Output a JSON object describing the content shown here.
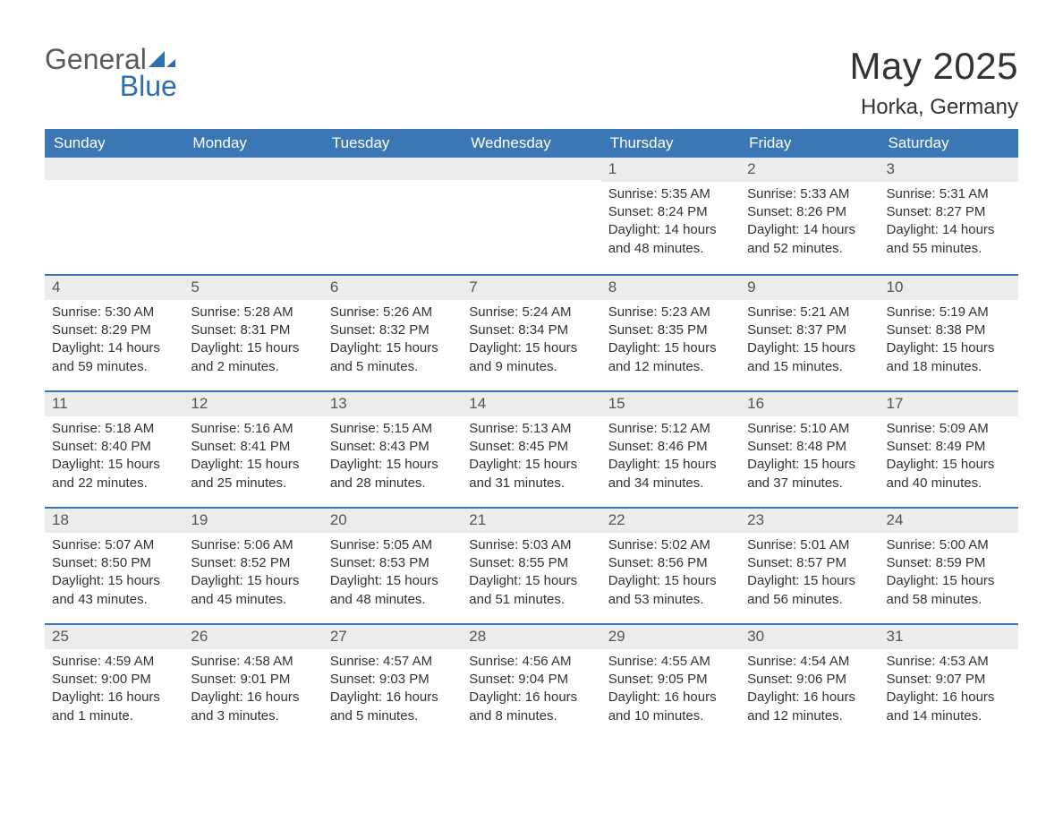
{
  "brand": {
    "general": "General",
    "blue": "Blue",
    "logo_fill": "#2f6faf"
  },
  "title": "May 2025",
  "location": "Horka, Germany",
  "colors": {
    "header_bg": "#3b77b5",
    "header_text": "#ffffff",
    "daynum_bg": "#ececec",
    "body_text": "#333333",
    "rule": "#3b77b5",
    "page_bg": "#ffffff"
  },
  "day_labels": [
    "Sunday",
    "Monday",
    "Tuesday",
    "Wednesday",
    "Thursday",
    "Friday",
    "Saturday"
  ],
  "weeks": [
    [
      {
        "empty": true
      },
      {
        "empty": true
      },
      {
        "empty": true
      },
      {
        "empty": true
      },
      {
        "day": "1",
        "sunrise": "Sunrise: 5:35 AM",
        "sunset": "Sunset: 8:24 PM",
        "daylight": "Daylight: 14 hours and 48 minutes."
      },
      {
        "day": "2",
        "sunrise": "Sunrise: 5:33 AM",
        "sunset": "Sunset: 8:26 PM",
        "daylight": "Daylight: 14 hours and 52 minutes."
      },
      {
        "day": "3",
        "sunrise": "Sunrise: 5:31 AM",
        "sunset": "Sunset: 8:27 PM",
        "daylight": "Daylight: 14 hours and 55 minutes."
      }
    ],
    [
      {
        "day": "4",
        "sunrise": "Sunrise: 5:30 AM",
        "sunset": "Sunset: 8:29 PM",
        "daylight": "Daylight: 14 hours and 59 minutes."
      },
      {
        "day": "5",
        "sunrise": "Sunrise: 5:28 AM",
        "sunset": "Sunset: 8:31 PM",
        "daylight": "Daylight: 15 hours and 2 minutes."
      },
      {
        "day": "6",
        "sunrise": "Sunrise: 5:26 AM",
        "sunset": "Sunset: 8:32 PM",
        "daylight": "Daylight: 15 hours and 5 minutes."
      },
      {
        "day": "7",
        "sunrise": "Sunrise: 5:24 AM",
        "sunset": "Sunset: 8:34 PM",
        "daylight": "Daylight: 15 hours and 9 minutes."
      },
      {
        "day": "8",
        "sunrise": "Sunrise: 5:23 AM",
        "sunset": "Sunset: 8:35 PM",
        "daylight": "Daylight: 15 hours and 12 minutes."
      },
      {
        "day": "9",
        "sunrise": "Sunrise: 5:21 AM",
        "sunset": "Sunset: 8:37 PM",
        "daylight": "Daylight: 15 hours and 15 minutes."
      },
      {
        "day": "10",
        "sunrise": "Sunrise: 5:19 AM",
        "sunset": "Sunset: 8:38 PM",
        "daylight": "Daylight: 15 hours and 18 minutes."
      }
    ],
    [
      {
        "day": "11",
        "sunrise": "Sunrise: 5:18 AM",
        "sunset": "Sunset: 8:40 PM",
        "daylight": "Daylight: 15 hours and 22 minutes."
      },
      {
        "day": "12",
        "sunrise": "Sunrise: 5:16 AM",
        "sunset": "Sunset: 8:41 PM",
        "daylight": "Daylight: 15 hours and 25 minutes."
      },
      {
        "day": "13",
        "sunrise": "Sunrise: 5:15 AM",
        "sunset": "Sunset: 8:43 PM",
        "daylight": "Daylight: 15 hours and 28 minutes."
      },
      {
        "day": "14",
        "sunrise": "Sunrise: 5:13 AM",
        "sunset": "Sunset: 8:45 PM",
        "daylight": "Daylight: 15 hours and 31 minutes."
      },
      {
        "day": "15",
        "sunrise": "Sunrise: 5:12 AM",
        "sunset": "Sunset: 8:46 PM",
        "daylight": "Daylight: 15 hours and 34 minutes."
      },
      {
        "day": "16",
        "sunrise": "Sunrise: 5:10 AM",
        "sunset": "Sunset: 8:48 PM",
        "daylight": "Daylight: 15 hours and 37 minutes."
      },
      {
        "day": "17",
        "sunrise": "Sunrise: 5:09 AM",
        "sunset": "Sunset: 8:49 PM",
        "daylight": "Daylight: 15 hours and 40 minutes."
      }
    ],
    [
      {
        "day": "18",
        "sunrise": "Sunrise: 5:07 AM",
        "sunset": "Sunset: 8:50 PM",
        "daylight": "Daylight: 15 hours and 43 minutes."
      },
      {
        "day": "19",
        "sunrise": "Sunrise: 5:06 AM",
        "sunset": "Sunset: 8:52 PM",
        "daylight": "Daylight: 15 hours and 45 minutes."
      },
      {
        "day": "20",
        "sunrise": "Sunrise: 5:05 AM",
        "sunset": "Sunset: 8:53 PM",
        "daylight": "Daylight: 15 hours and 48 minutes."
      },
      {
        "day": "21",
        "sunrise": "Sunrise: 5:03 AM",
        "sunset": "Sunset: 8:55 PM",
        "daylight": "Daylight: 15 hours and 51 minutes."
      },
      {
        "day": "22",
        "sunrise": "Sunrise: 5:02 AM",
        "sunset": "Sunset: 8:56 PM",
        "daylight": "Daylight: 15 hours and 53 minutes."
      },
      {
        "day": "23",
        "sunrise": "Sunrise: 5:01 AM",
        "sunset": "Sunset: 8:57 PM",
        "daylight": "Daylight: 15 hours and 56 minutes."
      },
      {
        "day": "24",
        "sunrise": "Sunrise: 5:00 AM",
        "sunset": "Sunset: 8:59 PM",
        "daylight": "Daylight: 15 hours and 58 minutes."
      }
    ],
    [
      {
        "day": "25",
        "sunrise": "Sunrise: 4:59 AM",
        "sunset": "Sunset: 9:00 PM",
        "daylight": "Daylight: 16 hours and 1 minute."
      },
      {
        "day": "26",
        "sunrise": "Sunrise: 4:58 AM",
        "sunset": "Sunset: 9:01 PM",
        "daylight": "Daylight: 16 hours and 3 minutes."
      },
      {
        "day": "27",
        "sunrise": "Sunrise: 4:57 AM",
        "sunset": "Sunset: 9:03 PM",
        "daylight": "Daylight: 16 hours and 5 minutes."
      },
      {
        "day": "28",
        "sunrise": "Sunrise: 4:56 AM",
        "sunset": "Sunset: 9:04 PM",
        "daylight": "Daylight: 16 hours and 8 minutes."
      },
      {
        "day": "29",
        "sunrise": "Sunrise: 4:55 AM",
        "sunset": "Sunset: 9:05 PM",
        "daylight": "Daylight: 16 hours and 10 minutes."
      },
      {
        "day": "30",
        "sunrise": "Sunrise: 4:54 AM",
        "sunset": "Sunset: 9:06 PM",
        "daylight": "Daylight: 16 hours and 12 minutes."
      },
      {
        "day": "31",
        "sunrise": "Sunrise: 4:53 AM",
        "sunset": "Sunset: 9:07 PM",
        "daylight": "Daylight: 16 hours and 14 minutes."
      }
    ]
  ]
}
